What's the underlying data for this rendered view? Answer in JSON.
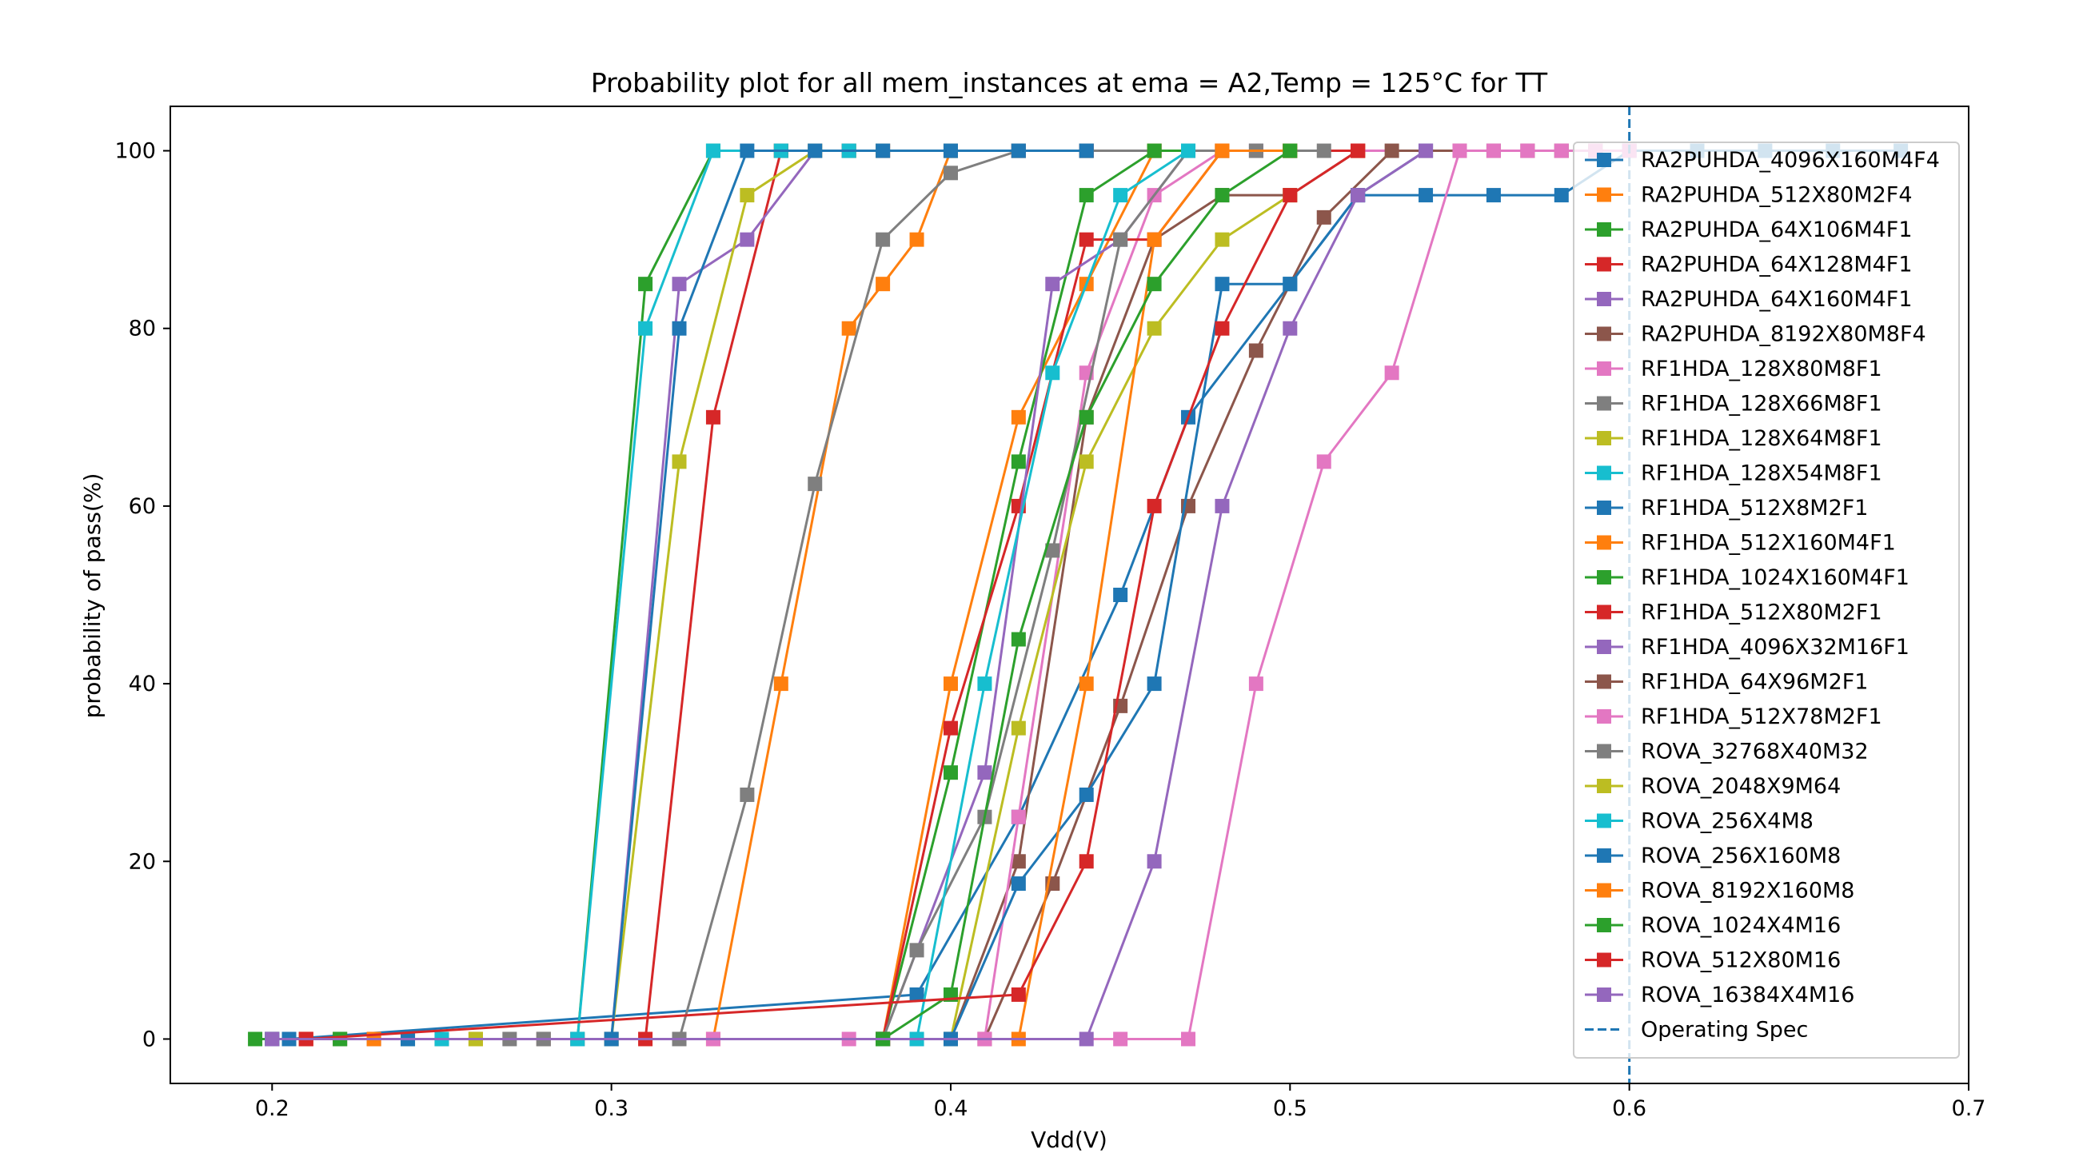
{
  "chart_data": {
    "type": "line",
    "title": "Probability plot for all mem_instances at ema = A2,Temp = 125°C for TT",
    "xlabel": "Vdd(V)",
    "ylabel": "probability of pass(%)",
    "xlim": [
      0.17,
      0.7
    ],
    "ylim": [
      -5,
      105
    ],
    "xticks": [
      "0.2",
      "0.3",
      "0.4",
      "0.5",
      "0.6",
      "0.7"
    ],
    "yticks": [
      "0",
      "20",
      "40",
      "60",
      "80",
      "100"
    ],
    "grid": false,
    "legend_position": "right",
    "marker": "square",
    "series": [
      {
        "name": "RA2PUHDA_4096X160M4F4",
        "color": "#1f77b4",
        "x": [
          0.205,
          0.39,
          0.42,
          0.45,
          0.47,
          0.5,
          0.52,
          0.54,
          0.56,
          0.58,
          0.6,
          0.62,
          0.64,
          0.66,
          0.68
        ],
        "y": [
          0,
          5,
          25,
          50,
          70,
          85,
          95,
          95,
          95,
          95,
          100,
          100,
          100,
          100,
          100
        ]
      },
      {
        "name": "RA2PUHDA_512X80M2F4",
        "color": "#ff7f0e",
        "x": [
          0.21,
          0.33,
          0.35,
          0.37,
          0.38,
          0.39,
          0.4,
          0.42,
          0.44,
          0.46,
          0.48,
          0.5,
          0.52
        ],
        "y": [
          0,
          0,
          40,
          80,
          85,
          90,
          100,
          100,
          100,
          100,
          100,
          100,
          100
        ]
      },
      {
        "name": "RA2PUHDA_64X106M4F1",
        "color": "#2ca02c",
        "x": [
          0.195,
          0.29,
          0.31,
          0.33,
          0.35,
          0.37,
          0.4,
          0.42,
          0.44,
          0.46
        ],
        "y": [
          0,
          0,
          85,
          100,
          100,
          100,
          100,
          100,
          100,
          100
        ]
      },
      {
        "name": "RA2PUHDA_64X128M4F1",
        "color": "#d62728",
        "x": [
          0.21,
          0.31,
          0.33,
          0.35,
          0.37,
          0.38,
          0.4,
          0.42,
          0.44,
          0.46
        ],
        "y": [
          0,
          0,
          70,
          100,
          100,
          100,
          100,
          100,
          100,
          100
        ]
      },
      {
        "name": "RA2PUHDA_64X160M4F1",
        "color": "#9467bd",
        "x": [
          0.2,
          0.3,
          0.32,
          0.34,
          0.36,
          0.38,
          0.4,
          0.42,
          0.44
        ],
        "y": [
          0,
          0,
          85,
          90,
          100,
          100,
          100,
          100,
          100
        ]
      },
      {
        "name": "RA2PUHDA_8192X80M8F4",
        "color": "#8c564b",
        "x": [
          0.28,
          0.38,
          0.4,
          0.42,
          0.44,
          0.46,
          0.48,
          0.5,
          0.52,
          0.54,
          0.56,
          0.58
        ],
        "y": [
          0,
          0,
          0,
          20,
          70,
          90,
          95,
          95,
          100,
          100,
          100,
          100
        ]
      },
      {
        "name": "RF1HDA_128X80M8F1",
        "color": "#e377c2",
        "x": [
          0.29,
          0.37,
          0.39,
          0.41,
          0.42,
          0.44,
          0.46,
          0.48,
          0.5,
          0.52,
          0.54,
          0.56,
          0.58,
          0.6
        ],
        "y": [
          0,
          0,
          0,
          0,
          25,
          75,
          95,
          100,
          100,
          100,
          100,
          100,
          100,
          100
        ]
      },
      {
        "name": "RF1HDA_128X66M8F1",
        "color": "#7f7f7f",
        "x": [
          0.28,
          0.32,
          0.34,
          0.36,
          0.38,
          0.4,
          0.42,
          0.44,
          0.46,
          0.48,
          0.5
        ],
        "y": [
          0,
          0,
          27.5,
          62.5,
          90,
          97.5,
          100,
          100,
          100,
          100,
          100
        ]
      },
      {
        "name": "RF1HDA_128X64M8F1",
        "color": "#bcbd22",
        "x": [
          0.2,
          0.3,
          0.32,
          0.34,
          0.36,
          0.38,
          0.4
        ],
        "y": [
          0,
          0,
          65,
          95,
          100,
          100,
          100
        ]
      },
      {
        "name": "RF1HDA_128X54M8F1",
        "color": "#17becf",
        "x": [
          0.2,
          0.29,
          0.31,
          0.33,
          0.35,
          0.37
        ],
        "y": [
          0,
          0,
          80,
          100,
          100,
          100
        ]
      },
      {
        "name": "RF1HDA_512X8M2F1",
        "color": "#1f77b4",
        "x": [
          0.2,
          0.3,
          0.32,
          0.34,
          0.36,
          0.38,
          0.4,
          0.42,
          0.44
        ],
        "y": [
          0,
          0,
          80,
          100,
          100,
          100,
          100,
          100,
          100
        ]
      },
      {
        "name": "RF1HDA_512X160M4F1",
        "color": "#ff7f0e",
        "x": [
          0.26,
          0.38,
          0.4,
          0.42,
          0.44,
          0.46,
          0.48,
          0.5,
          0.52
        ],
        "y": [
          0,
          0,
          40,
          70,
          85,
          100,
          100,
          100,
          100
        ]
      },
      {
        "name": "RF1HDA_1024X160M4F1",
        "color": "#2ca02c",
        "x": [
          0.24,
          0.38,
          0.4,
          0.42,
          0.44,
          0.46,
          0.48,
          0.5
        ],
        "y": [
          0,
          0,
          30,
          65,
          95,
          100,
          100,
          100
        ]
      },
      {
        "name": "RF1HDA_512X80M2F1",
        "color": "#d62728",
        "x": [
          0.25,
          0.38,
          0.4,
          0.42,
          0.44,
          0.46,
          0.48,
          0.5,
          0.52
        ],
        "y": [
          0,
          0,
          35,
          60,
          90,
          90,
          100,
          100,
          100
        ]
      },
      {
        "name": "RF1HDA_4096X32M16F1",
        "color": "#9467bd",
        "x": [
          0.23,
          0.38,
          0.41,
          0.43,
          0.45,
          0.47,
          0.49
        ],
        "y": [
          0,
          0,
          30,
          85,
          90,
          100,
          100
        ]
      },
      {
        "name": "RF1HDA_64X96M2F1",
        "color": "#8c564b",
        "x": [
          0.22,
          0.38,
          0.41,
          0.43,
          0.45,
          0.47,
          0.49,
          0.51,
          0.53,
          0.55,
          0.57,
          0.59
        ],
        "y": [
          0,
          0,
          0,
          17.5,
          37.5,
          60,
          77.5,
          92.5,
          100,
          100,
          100,
          100
        ]
      },
      {
        "name": "RF1HDA_512X78M2F1",
        "color": "#e377c2",
        "x": [
          0.33,
          0.41,
          0.45,
          0.47,
          0.49,
          0.51,
          0.53,
          0.55,
          0.57,
          0.59
        ],
        "y": [
          0,
          0,
          0,
          0,
          40,
          65,
          75,
          100,
          100,
          100
        ]
      },
      {
        "name": "ROVA_32768X40M32",
        "color": "#7f7f7f",
        "x": [
          0.27,
          0.38,
          0.39,
          0.41,
          0.43,
          0.45,
          0.47,
          0.49,
          0.51
        ],
        "y": [
          0,
          0,
          10,
          25,
          55,
          90,
          100,
          100,
          100
        ]
      },
      {
        "name": "ROVA_2048X9M64",
        "color": "#bcbd22",
        "x": [
          0.26,
          0.4,
          0.42,
          0.44,
          0.46,
          0.48,
          0.5
        ],
        "y": [
          0,
          0,
          35,
          65,
          80,
          90,
          95
        ]
      },
      {
        "name": "ROVA_256X4M8",
        "color": "#17becf",
        "x": [
          0.25,
          0.39,
          0.41,
          0.43,
          0.45,
          0.47
        ],
        "y": [
          0,
          0,
          40,
          75,
          95,
          100
        ]
      },
      {
        "name": "ROVA_256X160M8",
        "color": "#1f77b4",
        "x": [
          0.24,
          0.4,
          0.42,
          0.44,
          0.46,
          0.48,
          0.5,
          0.52,
          0.54
        ],
        "y": [
          0,
          0,
          17.5,
          27.5,
          40,
          85,
          85,
          95,
          100
        ]
      },
      {
        "name": "ROVA_8192X160M8",
        "color": "#ff7f0e",
        "x": [
          0.23,
          0.42,
          0.44,
          0.46,
          0.48,
          0.5
        ],
        "y": [
          0,
          0,
          40,
          90,
          100,
          100
        ]
      },
      {
        "name": "ROVA_1024X4M16",
        "color": "#2ca02c",
        "x": [
          0.22,
          0.38,
          0.4,
          0.42,
          0.44,
          0.46,
          0.48,
          0.5
        ],
        "y": [
          0,
          0,
          5,
          45,
          70,
          85,
          95,
          100
        ]
      },
      {
        "name": "ROVA_512X80M16",
        "color": "#d62728",
        "x": [
          0.21,
          0.42,
          0.44,
          0.46,
          0.48,
          0.5,
          0.52
        ],
        "y": [
          0,
          5,
          20,
          60,
          80,
          95,
          100
        ]
      },
      {
        "name": "ROVA_16384X4M16",
        "color": "#9467bd",
        "x": [
          0.2,
          0.44,
          0.46,
          0.48,
          0.5,
          0.52,
          0.54
        ],
        "y": [
          0,
          0,
          20,
          60,
          80,
          95,
          100
        ]
      }
    ],
    "reference_lines": [
      {
        "name": "Operating Spec",
        "x": 0.6,
        "color": "#1f77b4",
        "style": "dashed"
      }
    ]
  }
}
